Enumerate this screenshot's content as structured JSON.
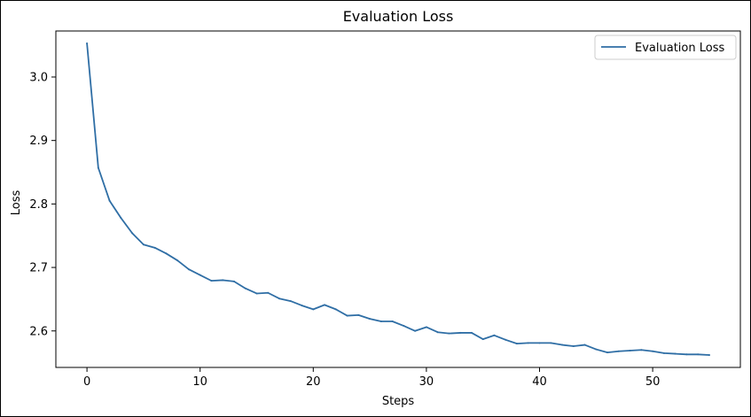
{
  "chart_data": {
    "type": "line",
    "title": "Evaluation Loss",
    "xlabel": "Steps",
    "ylabel": "Loss",
    "xlim": [
      -2.75,
      57.75
    ],
    "ylim": [
      2.5425,
      3.0725
    ],
    "xticks": [
      0,
      10,
      20,
      30,
      40,
      50
    ],
    "yticks": [
      2.6,
      2.7,
      2.8,
      2.9,
      3.0
    ],
    "x_tick_labels": [
      "0",
      "10",
      "20",
      "30",
      "40",
      "50"
    ],
    "y_tick_labels": [
      "2.6",
      "2.7",
      "2.8",
      "2.9",
      "3.0"
    ],
    "grid": false,
    "legend_position": "top-right",
    "x": [
      0,
      1,
      2,
      3,
      4,
      5,
      6,
      7,
      8,
      9,
      10,
      11,
      12,
      13,
      14,
      15,
      16,
      17,
      18,
      19,
      20,
      21,
      22,
      23,
      24,
      25,
      26,
      27,
      28,
      29,
      30,
      31,
      32,
      33,
      34,
      35,
      36,
      37,
      38,
      39,
      40,
      41,
      42,
      43,
      44,
      45,
      46,
      47,
      48,
      49,
      50,
      51,
      52,
      53,
      54,
      55
    ],
    "series": [
      {
        "name": "Evaluation Loss",
        "color": "#2f6ea5",
        "values": [
          3.053,
          2.857,
          2.805,
          2.778,
          2.754,
          2.736,
          2.731,
          2.722,
          2.711,
          2.697,
          2.688,
          2.679,
          2.68,
          2.678,
          2.667,
          2.659,
          2.66,
          2.651,
          2.647,
          2.64,
          2.634,
          2.641,
          2.634,
          2.624,
          2.625,
          2.619,
          2.615,
          2.615,
          2.608,
          2.6,
          2.606,
          2.598,
          2.596,
          2.597,
          2.597,
          2.587,
          2.593,
          2.586,
          2.58,
          2.581,
          2.581,
          2.581,
          2.578,
          2.576,
          2.578,
          2.571,
          2.566,
          2.568,
          2.569,
          2.57,
          2.568,
          2.565,
          2.564,
          2.563,
          2.563,
          2.562
        ]
      }
    ]
  }
}
